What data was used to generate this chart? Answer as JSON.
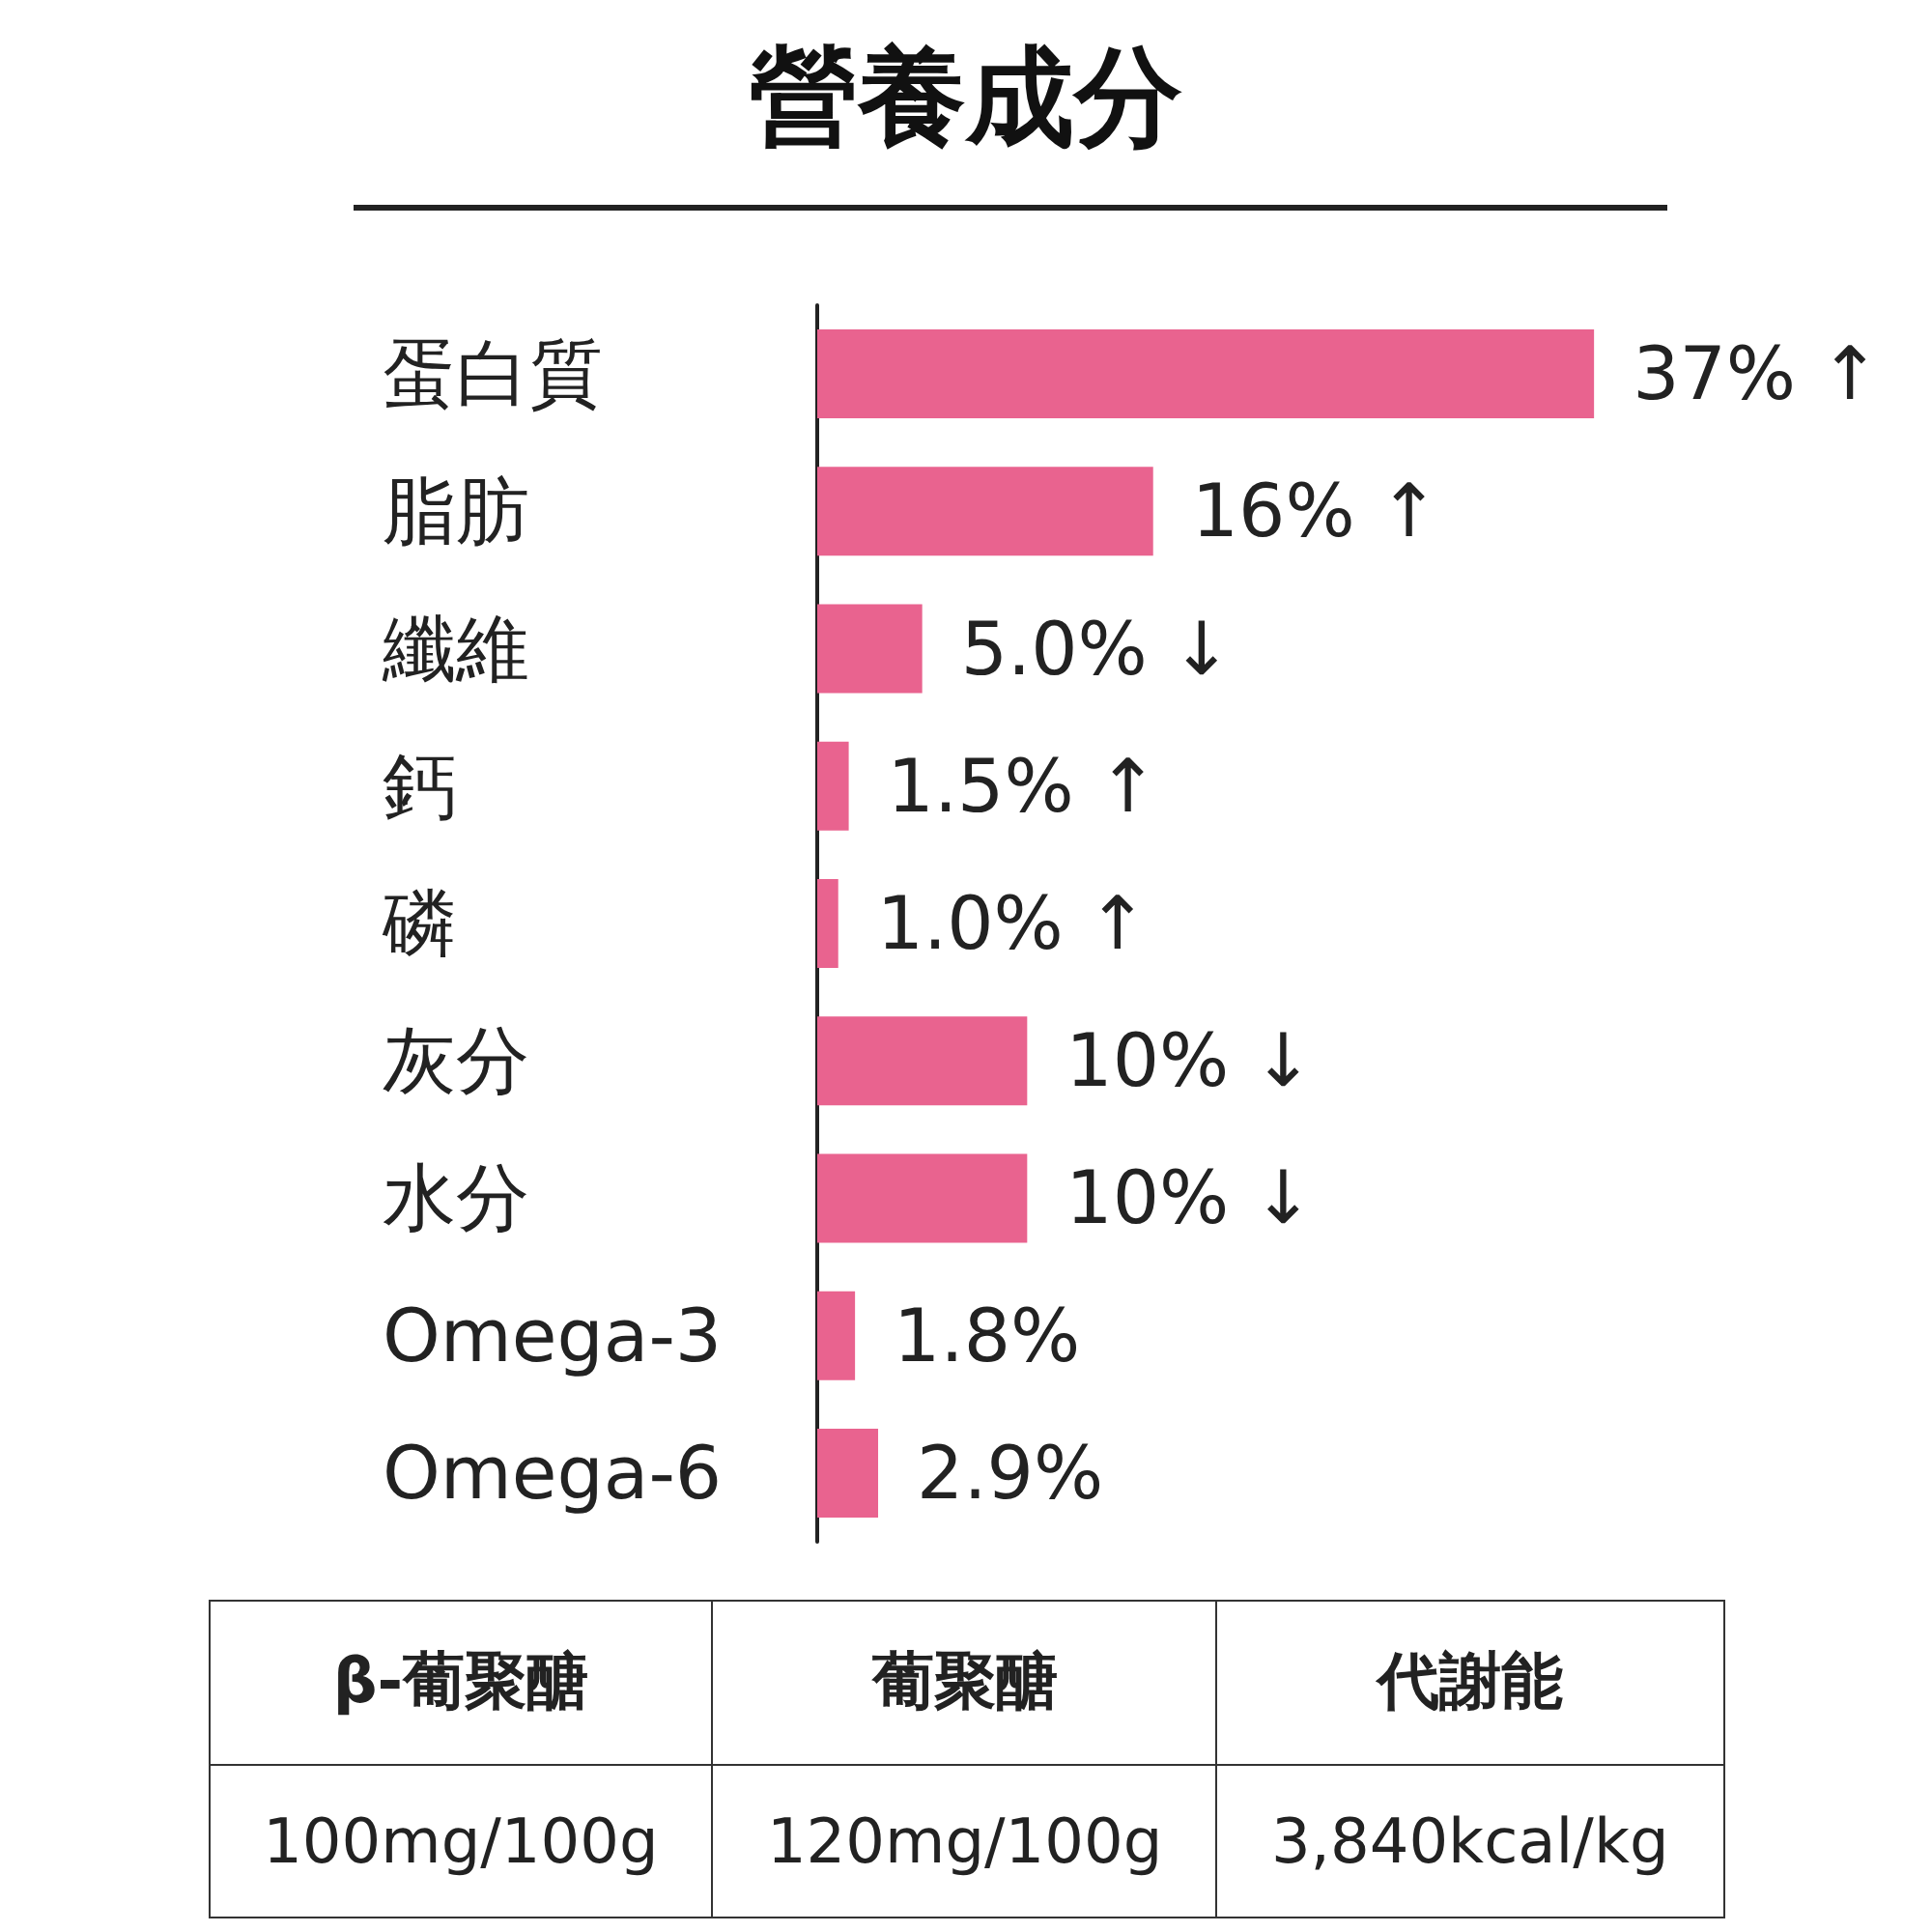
{
  "chart_data": {
    "type": "bar",
    "orientation": "horizontal",
    "title": "營養成分",
    "categories": [
      "蛋白質",
      "脂肪",
      "纖維",
      "鈣",
      "磷",
      "灰分",
      "水分",
      "Omega-3",
      "Omega-6"
    ],
    "values": [
      37,
      16,
      5.0,
      1.5,
      1.0,
      10,
      10,
      1.8,
      2.9
    ],
    "value_labels": [
      "37% ↑",
      "16% ↑",
      "5.0% ↓",
      "1.5% ↑",
      "1.0% ↑",
      "10% ↓",
      "10% ↓",
      "1.8%",
      "2.9%"
    ],
    "color": "#e9638f",
    "tick_labels": "y",
    "annotations": [
      "β-葡聚醣",
      "葡聚醣",
      "代謝能",
      "100mg/100g",
      "120mg/100g",
      "3,840kcal/kg"
    ]
  }
}
